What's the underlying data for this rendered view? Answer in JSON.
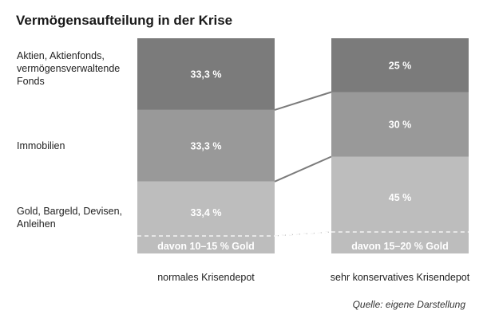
{
  "chart_data": {
    "type": "bar",
    "stacked": true,
    "title": "Vermögensaufteilung in der Krise",
    "categories": [
      "normales Krisendepot",
      "sehr konservatives Krisendepot"
    ],
    "series": [
      {
        "name": "Aktien, Aktienfonds, vermögensverwaltende Fonds",
        "label_lines": [
          "Aktien, Aktienfonds,",
          "vermögensverwaltende",
          "Fonds"
        ],
        "values": [
          33.3,
          25
        ],
        "value_labels": [
          "33,3 %",
          "25 %"
        ],
        "color": "#7b7b7b"
      },
      {
        "name": "Immobilien",
        "label_lines": [
          "Immobilien"
        ],
        "values": [
          33.3,
          30
        ],
        "value_labels": [
          "33,3 %",
          "30 %"
        ],
        "color": "#999999"
      },
      {
        "name": "Gold, Bargeld, Devisen, Anleihen",
        "label_lines": [
          "Gold, Bargeld, Devisen,",
          "Anleihen"
        ],
        "values": [
          33.4,
          45
        ],
        "value_labels": [
          "33,4 %",
          "45 %"
        ],
        "color": "#bdbdbd"
      }
    ],
    "gold_subset": {
      "range_percent": [
        [
          10,
          15
        ],
        [
          15,
          20
        ]
      ],
      "labels": [
        "davon 10–15 % Gold",
        "davon 15–20 % Gold"
      ]
    },
    "connector_color": "#7b7b7b",
    "source": "Quelle: eigene Darstellung",
    "ylim": [
      0,
      100
    ],
    "grid": false,
    "legend": "left"
  }
}
